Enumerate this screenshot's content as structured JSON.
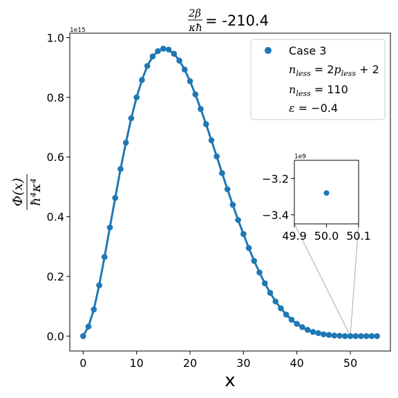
{
  "chart_data": {
    "type": "line",
    "title_fraction_num": "2β",
    "title_fraction_den": "κħ",
    "title_value": "= -210.4",
    "xlabel": "x",
    "ylabel_num": "Φ(x)",
    "ylabel_den": "ħ⁴κ⁴",
    "y_offset_text": "1e15",
    "xlim": [
      -2.5,
      57.5
    ],
    "ylim": [
      -0.05,
      1.015
    ],
    "x_ticks": [
      0,
      10,
      20,
      30,
      40,
      50
    ],
    "x_tick_labels": [
      "0",
      "10",
      "20",
      "30",
      "40",
      "50"
    ],
    "y_ticks": [
      0.0,
      0.2,
      0.4,
      0.6,
      0.8,
      1.0
    ],
    "y_tick_labels": [
      "0.0",
      "0.2",
      "0.4",
      "0.6",
      "0.8",
      "1.0"
    ],
    "legend": {
      "placement": "upper right",
      "entries": [
        "Case 3",
        "n_less = 2p_less + 2",
        "n_less = 110",
        "ε = −0.4"
      ]
    },
    "series": [
      {
        "name": "Case 3",
        "color": "#1f77b4",
        "x": [
          0,
          1,
          2,
          3,
          4,
          5,
          6,
          7,
          8,
          9,
          10,
          11,
          12,
          13,
          14,
          15,
          16,
          17,
          18,
          19,
          20,
          21,
          22,
          23,
          24,
          25,
          26,
          27,
          28,
          29,
          30,
          31,
          32,
          33,
          34,
          35,
          36,
          37,
          38,
          39,
          40,
          41,
          42,
          43,
          44,
          45,
          46,
          47,
          48,
          49,
          50,
          51,
          52,
          53,
          54,
          55
        ],
        "y": [
          0.0,
          0.032,
          0.089,
          0.17,
          0.265,
          0.364,
          0.463,
          0.56,
          0.648,
          0.73,
          0.8,
          0.858,
          0.905,
          0.937,
          0.955,
          0.963,
          0.96,
          0.946,
          0.923,
          0.893,
          0.854,
          0.81,
          0.761,
          0.71,
          0.656,
          0.602,
          0.546,
          0.492,
          0.44,
          0.389,
          0.342,
          0.295,
          0.252,
          0.213,
          0.177,
          0.145,
          0.116,
          0.093,
          0.072,
          0.055,
          0.041,
          0.03,
          0.021,
          0.014,
          0.01,
          0.006,
          0.004,
          0.002,
          0.001,
          0.0,
          0.0,
          0.0,
          0.0,
          0.0,
          0.0,
          0.0
        ]
      }
    ],
    "inset": {
      "offset_text": "1e9",
      "xlim": [
        49.9,
        50.1
      ],
      "ylim": [
        -3.45,
        -3.1
      ],
      "x_ticks": [
        49.9,
        50.0,
        50.1
      ],
      "x_tick_labels": [
        "49.9",
        "50.0",
        "50.1"
      ],
      "y_ticks": [
        -3.2,
        -3.4
      ],
      "y_tick_labels": [
        "−3.2",
        "−3.4"
      ],
      "point": {
        "x": 50.0,
        "y": -3.28
      },
      "zoom_center": {
        "x": 50.0,
        "y": 0.0
      }
    }
  }
}
